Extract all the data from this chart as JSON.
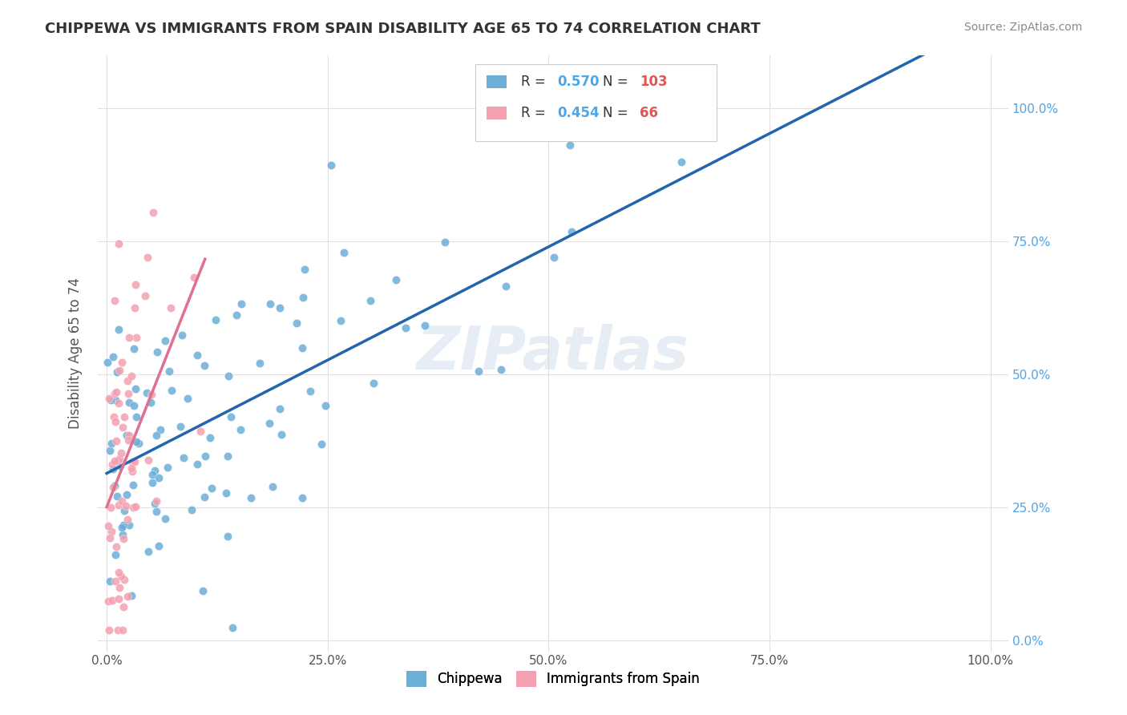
{
  "title": "CHIPPEWA VS IMMIGRANTS FROM SPAIN DISABILITY AGE 65 TO 74 CORRELATION CHART",
  "source": "Source: ZipAtlas.com",
  "ylabel": "Disability Age 65 to 74",
  "watermark": "ZIPatlas",
  "legend_chippewa_R": "0.570",
  "legend_chippewa_N": "103",
  "legend_spain_R": "0.454",
  "legend_spain_N": "66",
  "chippewa_color": "#6baed6",
  "spain_color": "#f4a0b0",
  "chippewa_line_color": "#2166ac",
  "spain_line_color": "#e07090",
  "background_color": "#ffffff",
  "grid_color": "#e0e0e0",
  "right_tick_color": "#4da6e8",
  "N_color": "#e05555",
  "R_color": "#4da6e8"
}
